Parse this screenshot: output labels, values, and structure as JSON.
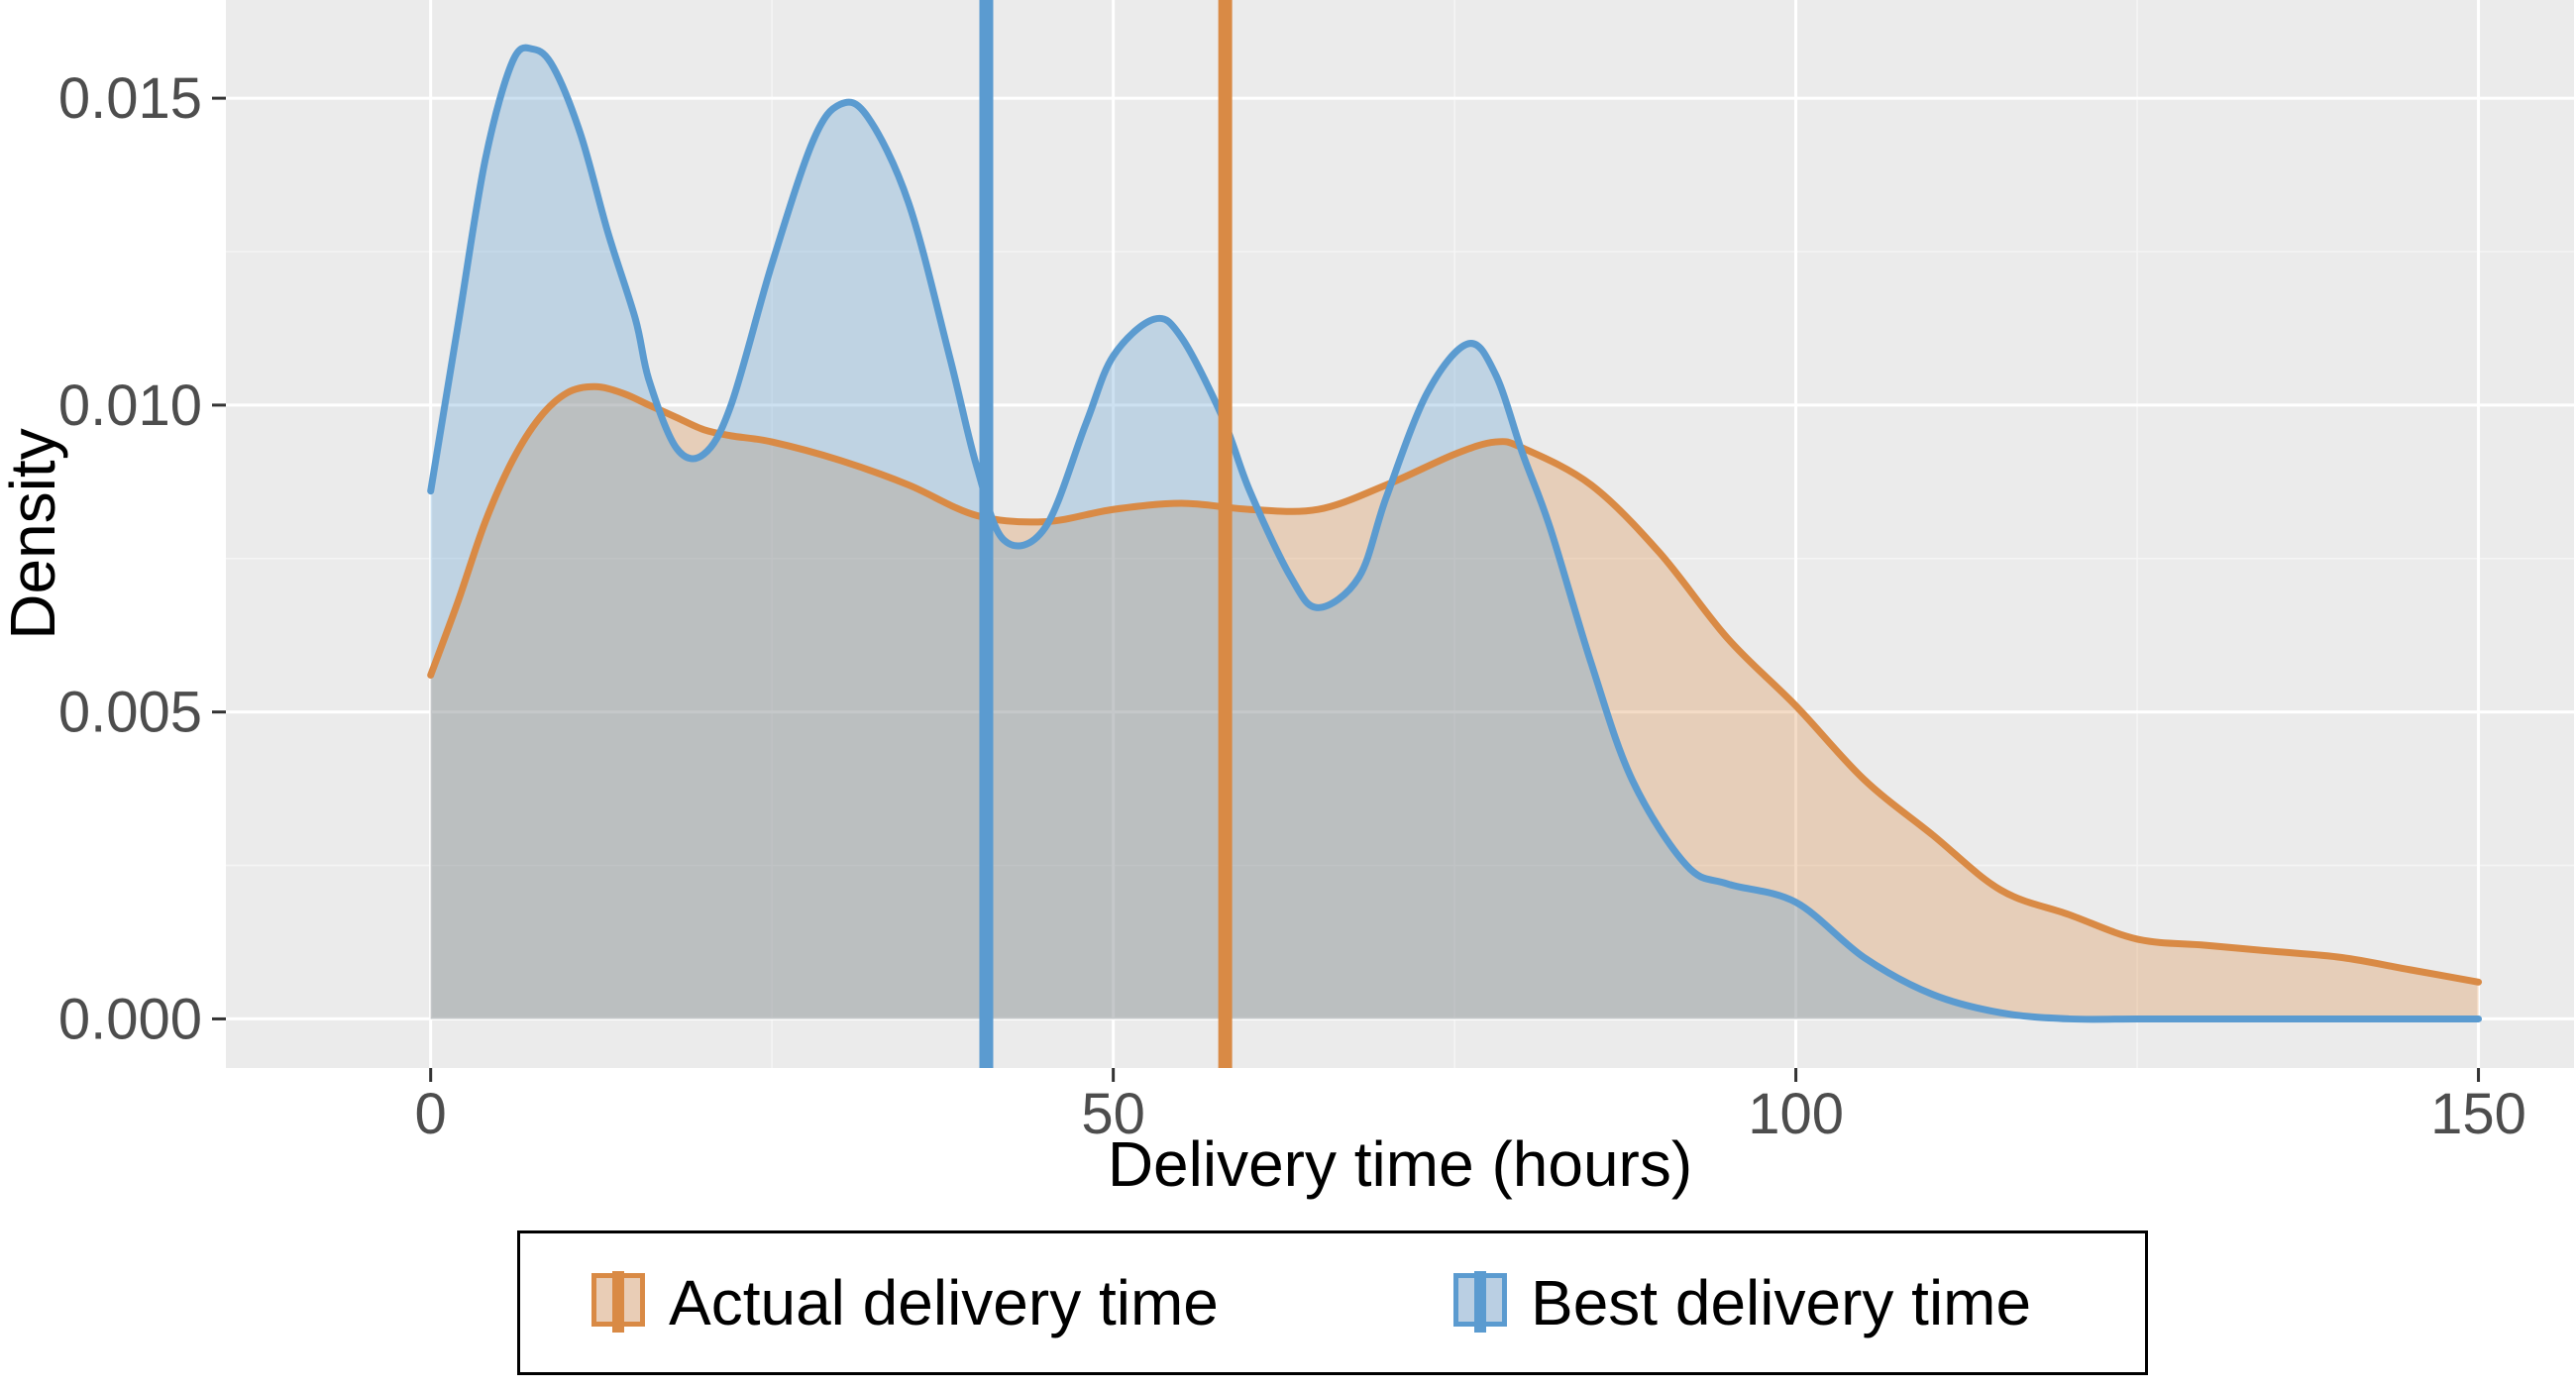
{
  "chart_data": {
    "type": "area",
    "xlabel": "Delivery time (hours)",
    "ylabel": "Density",
    "xlim": [
      -15,
      157
    ],
    "ylim": [
      -0.0008,
      0.0166
    ],
    "x_ticks": [
      0,
      50,
      100,
      150
    ],
    "x_tick_labels": [
      "0",
      "50",
      "100",
      "150"
    ],
    "y_ticks": [
      0.0,
      0.005,
      0.01,
      0.015
    ],
    "y_tick_labels": [
      "0.000",
      "0.005",
      "0.010",
      "0.015"
    ],
    "grid": true,
    "legend_position": "bottom",
    "series": [
      {
        "name": "Actual delivery time",
        "color": "#D98A45",
        "fill": "#E9CDB6",
        "mean_line_x": 58.2,
        "x": [
          0,
          2,
          4,
          6,
          8,
          10,
          12,
          14,
          16,
          18,
          20,
          22,
          25,
          30,
          35,
          40,
          45,
          50,
          55,
          60,
          65,
          70,
          75,
          78,
          80,
          85,
          90,
          95,
          100,
          105,
          110,
          115,
          120,
          125,
          130,
          135,
          140,
          145,
          150
        ],
        "y": [
          0.0056,
          0.0068,
          0.0081,
          0.0091,
          0.0098,
          0.0102,
          0.0103,
          0.0102,
          0.01,
          0.0098,
          0.0096,
          0.0095,
          0.0094,
          0.0091,
          0.0087,
          0.0082,
          0.0081,
          0.0083,
          0.0084,
          0.0083,
          0.0083,
          0.0087,
          0.0092,
          0.0094,
          0.0093,
          0.0087,
          0.0076,
          0.0062,
          0.0051,
          0.0039,
          0.003,
          0.0021,
          0.0017,
          0.0013,
          0.0012,
          0.0011,
          0.001,
          0.0008,
          0.0006
        ]
      },
      {
        "name": "Best delivery time",
        "color": "#5B9BD0",
        "fill": "#BACFE3",
        "mean_line_x": 40.7,
        "x": [
          0,
          2,
          4,
          6,
          7.5,
          9,
          11,
          13,
          15,
          16,
          18,
          20,
          22,
          25,
          28,
          30,
          32,
          35,
          38,
          40,
          42,
          45,
          48,
          50,
          53,
          55,
          58,
          60,
          63,
          65,
          68,
          70,
          73,
          76,
          78,
          80,
          82,
          85,
          88,
          92,
          95,
          100,
          105,
          110,
          115,
          120,
          125,
          130,
          150
        ],
        "y": [
          0.0086,
          0.0113,
          0.014,
          0.0156,
          0.0158,
          0.0155,
          0.0144,
          0.0128,
          0.0114,
          0.0104,
          0.0093,
          0.0092,
          0.01,
          0.0123,
          0.0143,
          0.0149,
          0.0147,
          0.0133,
          0.0108,
          0.009,
          0.0078,
          0.008,
          0.0097,
          0.0108,
          0.0114,
          0.0111,
          0.0098,
          0.0086,
          0.0072,
          0.0067,
          0.0072,
          0.0085,
          0.0102,
          0.011,
          0.0105,
          0.0092,
          0.008,
          0.0058,
          0.0039,
          0.0025,
          0.0022,
          0.0019,
          0.001,
          0.0004,
          0.0001,
          0.0,
          0.0,
          0.0,
          0.0
        ]
      }
    ]
  }
}
